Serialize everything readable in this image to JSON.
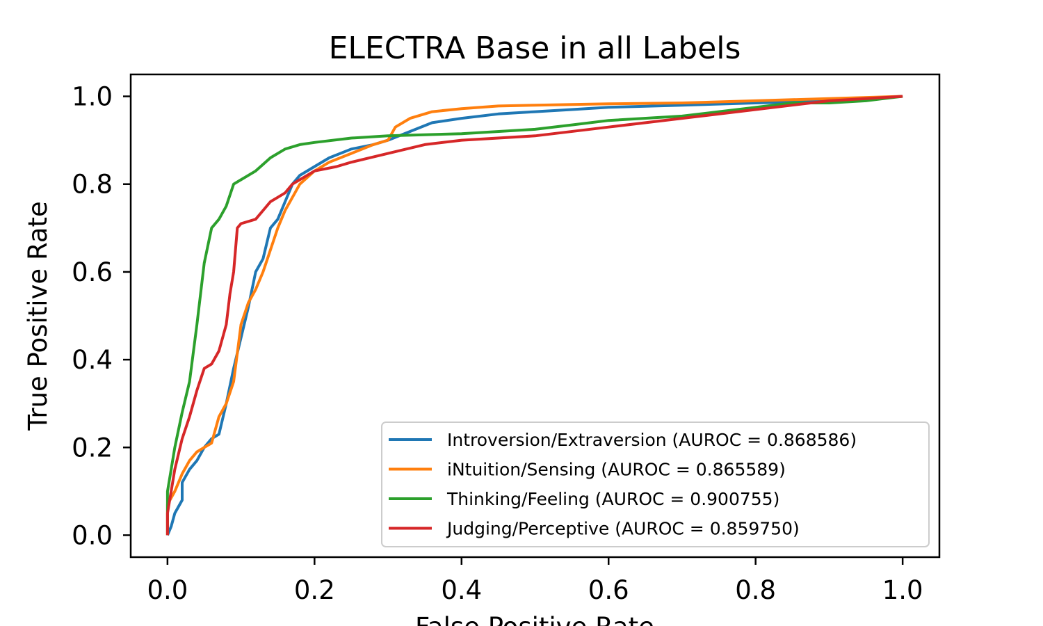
{
  "chart_data": {
    "type": "line",
    "title": "ELECTRA Base in all Labels",
    "xlabel": "False Positive Rate",
    "ylabel": "True Positive Rate",
    "xlim": [
      -0.05,
      1.05
    ],
    "ylim": [
      -0.05,
      1.05
    ],
    "x_ticks": [
      "0.0",
      "0.2",
      "0.4",
      "0.6",
      "0.8",
      "1.0"
    ],
    "y_ticks": [
      "0.0",
      "0.2",
      "0.4",
      "0.6",
      "0.8",
      "1.0"
    ],
    "grid": false,
    "legend_position": "lower-right",
    "series": [
      {
        "name": "Introversion/Extraversion (AUROC = 0.868586)",
        "color": "#1f77b4",
        "points": [
          [
            0,
            0
          ],
          [
            0.005,
            0.02
          ],
          [
            0.01,
            0.05
          ],
          [
            0.02,
            0.08
          ],
          [
            0.02,
            0.12
          ],
          [
            0.03,
            0.15
          ],
          [
            0.04,
            0.17
          ],
          [
            0.05,
            0.2
          ],
          [
            0.06,
            0.22
          ],
          [
            0.07,
            0.23
          ],
          [
            0.08,
            0.3
          ],
          [
            0.09,
            0.38
          ],
          [
            0.1,
            0.45
          ],
          [
            0.11,
            0.52
          ],
          [
            0.12,
            0.6
          ],
          [
            0.13,
            0.63
          ],
          [
            0.14,
            0.7
          ],
          [
            0.15,
            0.72
          ],
          [
            0.16,
            0.76
          ],
          [
            0.17,
            0.8
          ],
          [
            0.18,
            0.82
          ],
          [
            0.2,
            0.84
          ],
          [
            0.22,
            0.86
          ],
          [
            0.25,
            0.88
          ],
          [
            0.28,
            0.89
          ],
          [
            0.3,
            0.9
          ],
          [
            0.33,
            0.92
          ],
          [
            0.36,
            0.94
          ],
          [
            0.4,
            0.95
          ],
          [
            0.45,
            0.96
          ],
          [
            0.5,
            0.965
          ],
          [
            0.55,
            0.97
          ],
          [
            0.6,
            0.975
          ],
          [
            0.7,
            0.98
          ],
          [
            0.8,
            0.985
          ],
          [
            0.9,
            0.99
          ],
          [
            1.0,
            1.0
          ]
        ]
      },
      {
        "name": "iNtuition/Sensing (AUROC = 0.865589)",
        "color": "#ff7f0e",
        "points": [
          [
            0,
            0
          ],
          [
            0,
            0.07
          ],
          [
            0.01,
            0.1
          ],
          [
            0.02,
            0.14
          ],
          [
            0.03,
            0.17
          ],
          [
            0.04,
            0.19
          ],
          [
            0.05,
            0.2
          ],
          [
            0.06,
            0.21
          ],
          [
            0.07,
            0.27
          ],
          [
            0.08,
            0.3
          ],
          [
            0.09,
            0.35
          ],
          [
            0.1,
            0.48
          ],
          [
            0.11,
            0.53
          ],
          [
            0.12,
            0.56
          ],
          [
            0.13,
            0.6
          ],
          [
            0.14,
            0.65
          ],
          [
            0.15,
            0.7
          ],
          [
            0.16,
            0.74
          ],
          [
            0.17,
            0.77
          ],
          [
            0.18,
            0.8
          ],
          [
            0.2,
            0.83
          ],
          [
            0.22,
            0.85
          ],
          [
            0.25,
            0.87
          ],
          [
            0.28,
            0.89
          ],
          [
            0.3,
            0.9
          ],
          [
            0.31,
            0.93
          ],
          [
            0.33,
            0.95
          ],
          [
            0.36,
            0.965
          ],
          [
            0.4,
            0.972
          ],
          [
            0.45,
            0.978
          ],
          [
            0.5,
            0.98
          ],
          [
            0.6,
            0.983
          ],
          [
            0.7,
            0.985
          ],
          [
            0.8,
            0.99
          ],
          [
            0.9,
            0.995
          ],
          [
            1.0,
            1.0
          ]
        ]
      },
      {
        "name": "Thinking/Feeling (AUROC = 0.900755)",
        "color": "#2ca02c",
        "points": [
          [
            0,
            0
          ],
          [
            0,
            0.1
          ],
          [
            0.01,
            0.2
          ],
          [
            0.02,
            0.28
          ],
          [
            0.03,
            0.35
          ],
          [
            0.04,
            0.48
          ],
          [
            0.05,
            0.62
          ],
          [
            0.06,
            0.7
          ],
          [
            0.07,
            0.72
          ],
          [
            0.08,
            0.75
          ],
          [
            0.09,
            0.8
          ],
          [
            0.1,
            0.81
          ],
          [
            0.12,
            0.83
          ],
          [
            0.14,
            0.86
          ],
          [
            0.16,
            0.88
          ],
          [
            0.18,
            0.89
          ],
          [
            0.2,
            0.895
          ],
          [
            0.25,
            0.905
          ],
          [
            0.3,
            0.91
          ],
          [
            0.4,
            0.915
          ],
          [
            0.5,
            0.925
          ],
          [
            0.55,
            0.935
          ],
          [
            0.6,
            0.945
          ],
          [
            0.7,
            0.955
          ],
          [
            0.75,
            0.965
          ],
          [
            0.8,
            0.975
          ],
          [
            0.85,
            0.985
          ],
          [
            0.9,
            0.985
          ],
          [
            0.95,
            0.99
          ],
          [
            1.0,
            1.0
          ]
        ]
      },
      {
        "name": "Judging/Perceptive (AUROC = 0.859750)",
        "color": "#d62728",
        "points": [
          [
            0,
            0
          ],
          [
            0,
            0.05
          ],
          [
            0.01,
            0.15
          ],
          [
            0.02,
            0.22
          ],
          [
            0.03,
            0.27
          ],
          [
            0.04,
            0.33
          ],
          [
            0.05,
            0.38
          ],
          [
            0.06,
            0.39
          ],
          [
            0.07,
            0.42
          ],
          [
            0.08,
            0.48
          ],
          [
            0.085,
            0.55
          ],
          [
            0.09,
            0.6
          ],
          [
            0.095,
            0.7
          ],
          [
            0.1,
            0.71
          ],
          [
            0.12,
            0.72
          ],
          [
            0.13,
            0.74
          ],
          [
            0.14,
            0.76
          ],
          [
            0.15,
            0.77
          ],
          [
            0.16,
            0.78
          ],
          [
            0.17,
            0.8
          ],
          [
            0.2,
            0.83
          ],
          [
            0.23,
            0.84
          ],
          [
            0.25,
            0.85
          ],
          [
            0.3,
            0.87
          ],
          [
            0.35,
            0.89
          ],
          [
            0.4,
            0.9
          ],
          [
            0.5,
            0.91
          ],
          [
            0.6,
            0.93
          ],
          [
            0.7,
            0.95
          ],
          [
            0.8,
            0.97
          ],
          [
            0.85,
            0.98
          ],
          [
            0.9,
            0.99
          ],
          [
            0.95,
            0.995
          ],
          [
            1.0,
            1.0
          ]
        ]
      }
    ]
  }
}
